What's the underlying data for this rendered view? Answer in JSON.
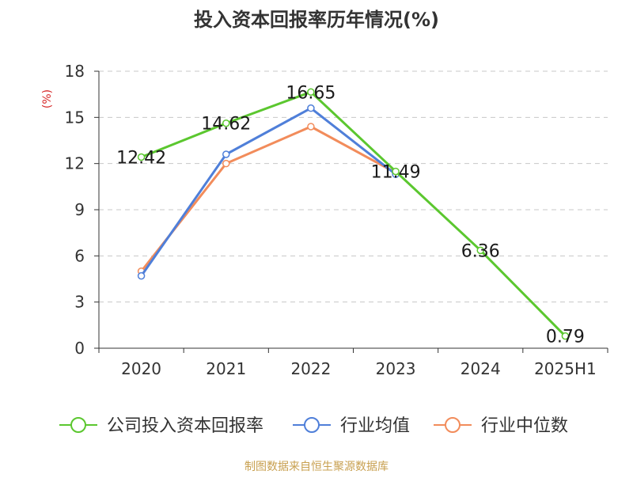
{
  "chart_data": {
    "type": "line",
    "title": "投入资本回报率历年情况(%)",
    "ylabel": "(%)",
    "xlabel": "",
    "categories": [
      "2020",
      "2021",
      "2022",
      "2023",
      "2024",
      "2025H1"
    ],
    "ylim": [
      0,
      18
    ],
    "yticks": [
      0,
      3,
      6,
      9,
      12,
      15,
      18
    ],
    "grid": true,
    "legend_position": "bottom",
    "series": [
      {
        "name": "公司投入资本回报率",
        "color": "#5bc72f",
        "values": [
          12.42,
          14.62,
          16.65,
          11.49,
          6.36,
          0.79
        ],
        "labels": [
          "12.42",
          "14.62",
          "16.65",
          "11.49",
          "6.36",
          "0.79"
        ]
      },
      {
        "name": "行业均值",
        "color": "#4f7fd9",
        "values": [
          4.7,
          12.6,
          15.6,
          11.3,
          null,
          null
        ]
      },
      {
        "name": "行业中位数",
        "color": "#f28c5b",
        "values": [
          5.0,
          12.0,
          14.4,
          11.4,
          null,
          null
        ]
      }
    ],
    "source": "制图数据来自恒生聚源数据库",
    "source_color": "#c8a050",
    "ylabel_color": "#d62828"
  }
}
